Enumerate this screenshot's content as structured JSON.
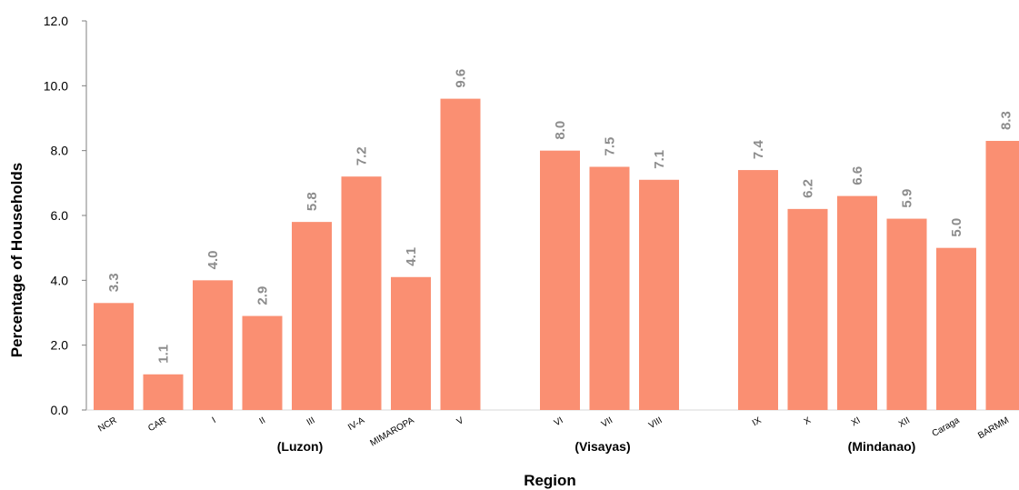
{
  "chart_data": {
    "type": "bar",
    "ylabel": "Percentage of Households",
    "xlabel": "Region",
    "ylim": [
      0,
      12
    ],
    "yticks": [
      "0.0",
      "2.0",
      "4.0",
      "6.0",
      "8.0",
      "10.0",
      "12.0"
    ],
    "bar_color": "#fa8f72",
    "label_color": "#8c8c8c",
    "grid": false,
    "categories": [
      "NCR",
      "CAR",
      "I",
      "II",
      "III",
      "IV-A",
      "MIMAROPA",
      "V",
      "VI",
      "VII",
      "VIII",
      "IX",
      "X",
      "XI",
      "XII",
      "Caraga",
      "BARMM"
    ],
    "values": [
      3.3,
      1.1,
      4.0,
      2.9,
      5.8,
      7.2,
      4.1,
      9.6,
      8.0,
      7.5,
      7.1,
      7.4,
      6.2,
      6.6,
      5.9,
      5.0,
      8.3
    ],
    "value_labels": [
      "3.3",
      "1.1",
      "4.0",
      "2.9",
      "5.8",
      "7.2",
      "4.1",
      "9.6",
      "8.0",
      "7.5",
      "7.1",
      "7.4",
      "6.2",
      "6.6",
      "5.9",
      "5.0",
      "8.3"
    ],
    "groups": [
      {
        "name": "(Luzon)",
        "categories": [
          "NCR",
          "CAR",
          "I",
          "II",
          "III",
          "IV-A",
          "MIMAROPA",
          "V"
        ]
      },
      {
        "name": "(Visayas)",
        "categories": [
          "VI",
          "VII",
          "VIII"
        ]
      },
      {
        "name": "(Mindanao)",
        "categories": [
          "IX",
          "X",
          "XI",
          "XII",
          "Caraga",
          "BARMM"
        ]
      }
    ]
  }
}
